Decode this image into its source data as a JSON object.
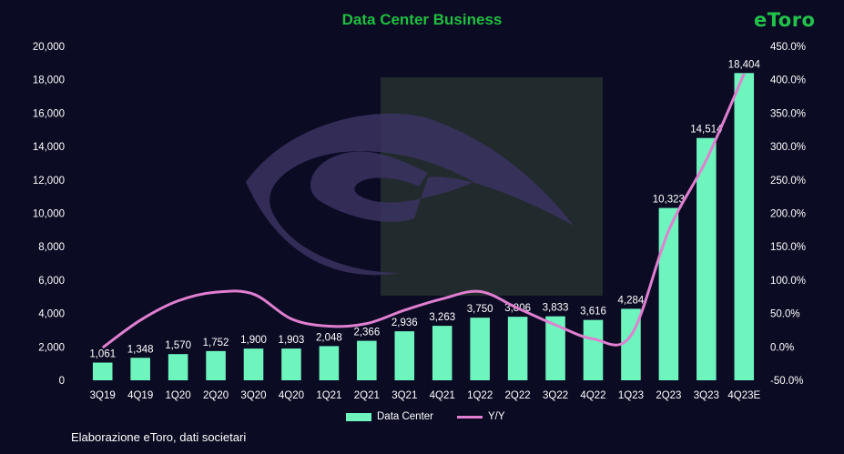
{
  "title": "Data Center Business",
  "brand": "eToro",
  "source": "Elaborazione eToro, dati societari",
  "colors": {
    "background": "#0b0b24",
    "bar": "#6ef5be",
    "line": "#e07fd0",
    "title": "#1fbf3f",
    "watermark_dark": "#212a2c",
    "watermark_purple": "#3a3360"
  },
  "legend": {
    "bar_label": "Data Center",
    "line_label": "Y/Y"
  },
  "chart_data": {
    "type": "bar",
    "title": "Data Center Business",
    "categories": [
      "3Q19",
      "4Q19",
      "1Q20",
      "2Q20",
      "3Q20",
      "4Q20",
      "1Q21",
      "2Q21",
      "3Q21",
      "4Q21",
      "1Q22",
      "2Q22",
      "3Q22",
      "4Q22",
      "1Q23",
      "2Q23",
      "3Q23",
      "4Q23E"
    ],
    "series": [
      {
        "name": "Data Center",
        "type": "bar",
        "axis": "left",
        "values": [
          1061,
          1348,
          1570,
          1752,
          1900,
          1903,
          2048,
          2366,
          2936,
          3263,
          3750,
          3806,
          3833,
          3616,
          4284,
          10323,
          14514,
          18404
        ],
        "labels": [
          "1,061",
          "1,348",
          "1,570",
          "1,752",
          "1,900",
          "1,903",
          "2,048",
          "2,366",
          "2,936",
          "3,263",
          "3,750",
          "3,806",
          "3,833",
          "3,616",
          "4,284",
          "10,323",
          "14,514",
          "18,404"
        ]
      },
      {
        "name": "Y/Y",
        "type": "line",
        "axis": "right",
        "values": [
          -1,
          40,
          69,
          82,
          79,
          42,
          31,
          35,
          55,
          72,
          83,
          58,
          33,
          12,
          17,
          174,
          280,
          409
        ]
      }
    ],
    "ylim": [
      0,
      20000
    ],
    "y_ticks": [
      "0",
      "2,000",
      "4,000",
      "6,000",
      "8,000",
      "10,000",
      "12,000",
      "14,000",
      "16,000",
      "18,000",
      "20,000"
    ],
    "y2lim": [
      -50,
      450
    ],
    "y2_ticks": [
      "-50.0%",
      "0.0%",
      "50.0%",
      "100.0%",
      "150.0%",
      "200.0%",
      "250.0%",
      "300.0%",
      "350.0%",
      "400.0%",
      "450.0%"
    ],
    "legend_position": "bottom",
    "grid": false
  }
}
